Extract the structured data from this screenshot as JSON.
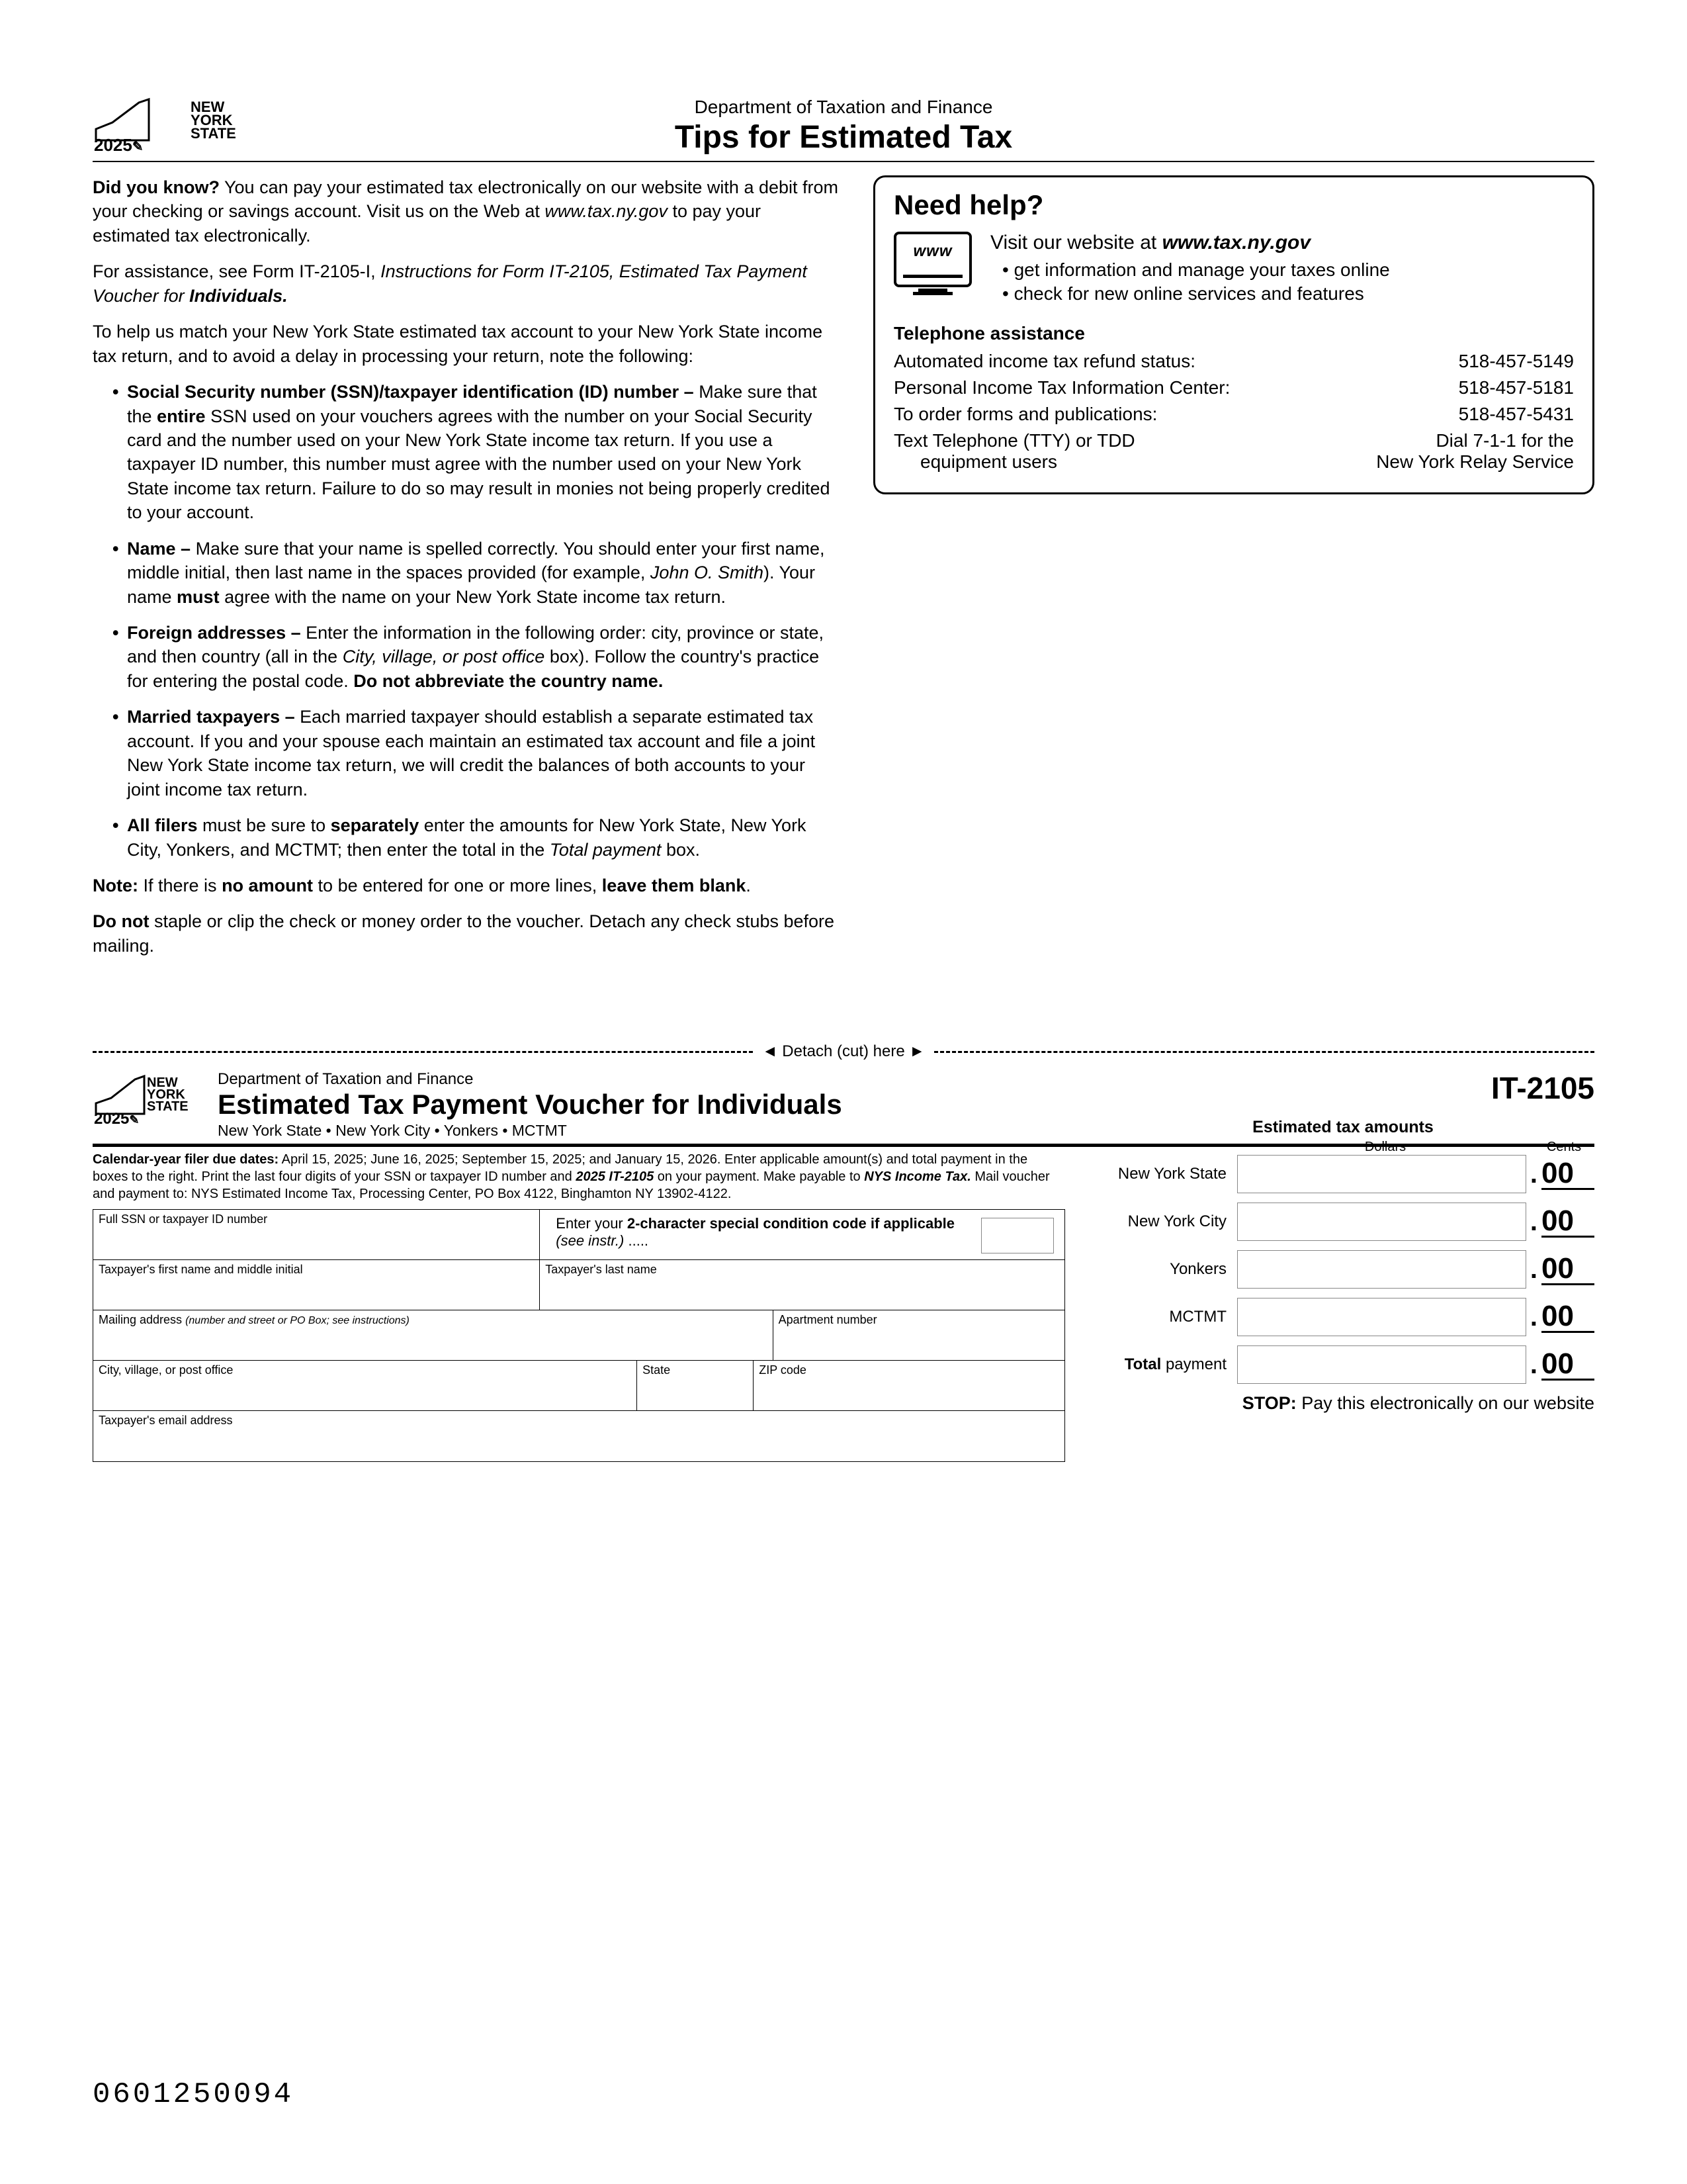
{
  "brand": {
    "state_text": "NEW\nYORK\nSTATE",
    "year": "2025"
  },
  "header": {
    "dept": "Department of Taxation and Finance",
    "title": "Tips for Estimated Tax"
  },
  "intro": {
    "p1_a": "Did you know?",
    "p1_b": " You can pay your estimated tax electronically on our website with a debit from your checking or savings account. Visit us on the Web at ",
    "p1_url": "www.tax.ny.gov",
    "p1_c": " to pay your estimated tax electronically.",
    "p2_a": "For assistance, see Form IT-2105-I, ",
    "p2_i": "Instructions for Form IT-2105, Estimated Tax Payment Voucher for ",
    "p2_b": "Individuals.",
    "p3": "To help us match your New York State estimated tax account to your New York State income tax return, and to avoid a delay in processing your return, note the following:"
  },
  "bullets": {
    "ssn_lead": "Social Security number (SSN)/taxpayer identification (ID) number –",
    "ssn_body_a": " Make sure that the ",
    "ssn_entire": "entire",
    "ssn_body_b": " SSN used on your vouchers agrees with the number on your Social Security card and the number used on your New York State income tax return. If you use a taxpayer ID number, this number must agree with the number used on your New York State income tax return. Failure to do so may result in monies not being properly credited to your account.",
    "name_lead": "Name –",
    "name_body_a": " Make sure that your name is spelled correctly. You should enter your first name, middle initial, then last name in the spaces provided (for example, ",
    "name_ex": "John O. Smith",
    "name_body_b": "). Your name ",
    "name_must": "must",
    "name_body_c": " agree with the name on your New York State income tax return.",
    "foreign_lead": "Foreign addresses –",
    "foreign_a": " Enter the information in the following order: city, province or state, and then country (all in the ",
    "foreign_i": "City, village, or post office",
    "foreign_b": " box). Follow the country's practice for entering the postal code. ",
    "foreign_bold": "Do not abbreviate the country name.",
    "married_lead": "Married taxpayers –",
    "married_body": " Each married taxpayer should establish a separate estimated tax account. If you and your spouse each maintain an estimated tax account and file a joint New York State income tax return, we will credit the balances of both accounts to your joint income tax return.",
    "all_lead": "All filers",
    "all_a": " must be sure to ",
    "all_sep": "separately",
    "all_b": " enter the amounts for New York State, New York City, Yonkers, and MCTMT; then enter the total in the ",
    "all_i": "Total payment",
    "all_c": " box."
  },
  "note": {
    "lead": "Note:",
    "a": " If there is ",
    "b1": "no amount",
    "b": " to be entered for one or more lines, ",
    "b2": "leave them blank",
    "c": "."
  },
  "donot": {
    "lead": "Do not",
    "body": " staple or clip the check or money order to the voucher. Detach any check stubs before mailing."
  },
  "help": {
    "title": "Need help?",
    "www_icon": "www",
    "visit_a": "Visit our website at ",
    "visit_url": "www.tax.ny.gov",
    "b1": "get information and manage your taxes online",
    "b2": "check for new online services and features",
    "tel_title": "Telephone assistance",
    "rows": [
      {
        "l": "Automated income tax refund status:",
        "r": "518-457-5149"
      },
      {
        "l": "Personal Income Tax Information Center:",
        "r": "518-457-5181"
      },
      {
        "l": "To order forms and publications:",
        "r": "518-457-5431"
      }
    ],
    "tty_l1": "Text Telephone (TTY) or TDD",
    "tty_l2": "equipment users",
    "tty_r1": "Dial 7-1-1 for the",
    "tty_r2": "New York Relay Service"
  },
  "detach": "◄ Detach (cut) here ►",
  "voucher": {
    "dept": "Department of Taxation and Finance",
    "title": "Estimated Tax Payment Voucher for Individuals",
    "sub": "New York State • New York City • Yonkers • MCTMT",
    "code": "IT-2105",
    "instr_a": "Calendar-year filer due dates:",
    "instr_b": " April 15, 2025; June 16, 2025; September 15, 2025; and January 15, 2026. Enter applicable amount(s) and total payment in the boxes to the right. Print the last four digits of your SSN or taxpayer ID number and ",
    "instr_c": "2025 IT-2105",
    "instr_d": " on your payment. Make payable to ",
    "instr_e": "NYS Income Tax.",
    "instr_f": " Mail voucher and payment to: NYS Estimated Income Tax, Processing Center, PO Box 4122, Binghamton NY 13902-4122.",
    "fields": {
      "ssn": "Full SSN or taxpayer ID number",
      "cond_a": "Enter your ",
      "cond_b": "2-character special condition code if applicable",
      "cond_c": " (see instr.)",
      "dots": ".....",
      "first": "Taxpayer's first name and middle initial",
      "last": "Taxpayer's last name",
      "mail": "Mailing address ",
      "mail_i": "(number and street or PO Box; see instructions)",
      "apt": "Apartment number",
      "city": "City, village, or post office",
      "state": "State",
      "zip": "ZIP code",
      "email": "Taxpayer's email address"
    },
    "amounts": {
      "header": "Estimated tax amounts",
      "dollars": "Dollars",
      "cents": "Cents",
      "rows": [
        "New York State",
        "New York City",
        "Yonkers",
        "MCTMT"
      ],
      "total_a": "Total",
      "total_b": " payment",
      "zeros": "00"
    },
    "stop_a": "STOP:",
    "stop_b": " Pay this electronically on our website"
  },
  "ocr": "0601250094"
}
